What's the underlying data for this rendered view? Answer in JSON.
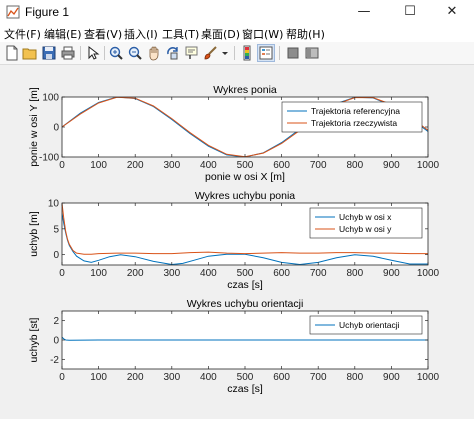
{
  "window": {
    "title": "Figure 1",
    "minimize_glyph": "—",
    "maximize_glyph": "☐",
    "close_glyph": "✕"
  },
  "menu": [
    "文件(F)",
    "编辑(E)",
    "查看(V)",
    "插入(I)",
    "工具(T)",
    "桌面(D)",
    "窗口(W)",
    "帮助(H)"
  ],
  "toolbar": {
    "icons": [
      "new-figure-icon",
      "open-file-icon",
      "save-icon",
      "print-icon",
      "pointer-icon",
      "zoom-in-icon",
      "zoom-out-icon",
      "pan-icon",
      "rotate-3d-icon",
      "data-cursor-icon",
      "brush-icon",
      "colorbar-icon",
      "legend-icon",
      "hide-plot-tools-icon",
      "show-plot-tools-icon"
    ]
  },
  "colors": {
    "series_blue": "#0072bd",
    "series_orange": "#d95319",
    "axes_bg": "#ffffff",
    "figure_bg": "#f0f0f0"
  },
  "chart_data": [
    {
      "type": "line",
      "title": "Wykres ponia",
      "xlabel": "ponie w osi X [m]",
      "ylabel": "ponie w osi Y [m]",
      "xlim": [
        0,
        1000
      ],
      "ylim": [
        -100,
        100
      ],
      "xticks": [
        0,
        100,
        200,
        300,
        400,
        500,
        600,
        700,
        800,
        900,
        1000
      ],
      "yticks": [
        -100,
        0,
        100
      ],
      "legend_position": "top-right",
      "grid": false,
      "series": [
        {
          "name": "Trajektoria referencyjna",
          "color": "#0072bd",
          "x": [
            0,
            50,
            100,
            150,
            200,
            250,
            300,
            350,
            400,
            450,
            500,
            550,
            600,
            650,
            700,
            750,
            800,
            850,
            900,
            950,
            1000
          ],
          "y": [
            0,
            46,
            82,
            100,
            95,
            68,
            25,
            -22,
            -64,
            -93,
            -100,
            -86,
            -52,
            -7,
            39,
            78,
            99,
            97,
            72,
            31,
            -15
          ]
        },
        {
          "name": "Trajektoria rzeczywista",
          "color": "#d95319",
          "x": [
            0,
            50,
            100,
            150,
            200,
            250,
            300,
            350,
            400,
            450,
            500,
            550,
            600,
            650,
            700,
            750,
            800,
            850,
            900,
            950,
            1000
          ],
          "y": [
            0,
            43,
            80,
            99,
            96,
            70,
            28,
            -19,
            -61,
            -91,
            -99,
            -87,
            -55,
            -11,
            36,
            76,
            98,
            98,
            75,
            35,
            -11
          ]
        }
      ]
    },
    {
      "type": "line",
      "title": "Wykres uchybu ponia",
      "xlabel": "czas [s]",
      "ylabel": "uchyb [m]",
      "xlim": [
        0,
        1000
      ],
      "ylim": [
        -2,
        10
      ],
      "xticks": [
        0,
        100,
        200,
        300,
        400,
        500,
        600,
        700,
        800,
        900,
        1000
      ],
      "yticks": [
        0,
        5,
        10
      ],
      "legend_position": "top-right",
      "grid": false,
      "series": [
        {
          "name": "Uchyb w osi x",
          "color": "#0072bd",
          "x": [
            0,
            5,
            10,
            15,
            20,
            30,
            40,
            60,
            80,
            100,
            130,
            160,
            200,
            250,
            300,
            330,
            360,
            400,
            450,
            500,
            550,
            600,
            650,
            700,
            750,
            800,
            850,
            900,
            950,
            1000
          ],
          "y": [
            8,
            6,
            4.2,
            2.8,
            1.8,
            0.6,
            -0.3,
            -1.2,
            -1.5,
            -1.1,
            -0.4,
            0,
            -0.4,
            -1.3,
            -1.9,
            -1.7,
            -1.1,
            -0.3,
            0.1,
            0.1,
            -0.6,
            -1.5,
            -1.9,
            -1.5,
            -0.6,
            0,
            -0.3,
            -1.1,
            -1.8,
            -1.8
          ]
        },
        {
          "name": "Uchyb w osi y",
          "color": "#d95319",
          "x": [
            0,
            5,
            10,
            15,
            20,
            30,
            40,
            60,
            80,
            100,
            150,
            200,
            250,
            300,
            350,
            400,
            450,
            500,
            550,
            600,
            650,
            700,
            750,
            800,
            850,
            900,
            950,
            1000
          ],
          "y": [
            10,
            7,
            4.5,
            3,
            2,
            0.8,
            0.3,
            0.1,
            0.1,
            0.2,
            0.3,
            0.3,
            0.2,
            0.2,
            0.4,
            0.5,
            0.3,
            0.2,
            0.3,
            0.4,
            0.3,
            0.3,
            0.4,
            0.4,
            0.3,
            0.3,
            0.2,
            0.2
          ]
        }
      ]
    },
    {
      "type": "line",
      "title": "Wykres uchybu orientacji",
      "xlabel": "czas [s]",
      "ylabel": "uchyb [st]",
      "xlim": [
        0,
        1000
      ],
      "ylim": [
        -3,
        3
      ],
      "xticks": [
        0,
        100,
        200,
        300,
        400,
        500,
        600,
        700,
        800,
        900,
        1000
      ],
      "yticks": [
        -2,
        0,
        2
      ],
      "legend_position": "top-right",
      "grid": false,
      "series": [
        {
          "name": "Uchyb orientacji",
          "color": "#0072bd",
          "x": [
            0,
            5,
            10,
            20,
            100,
            200,
            300,
            400,
            500,
            600,
            700,
            800,
            900,
            1000
          ],
          "y": [
            0.3,
            0.1,
            0,
            -0.02,
            0,
            0,
            0,
            0,
            0,
            0,
            0,
            0,
            0,
            0
          ]
        }
      ]
    }
  ]
}
